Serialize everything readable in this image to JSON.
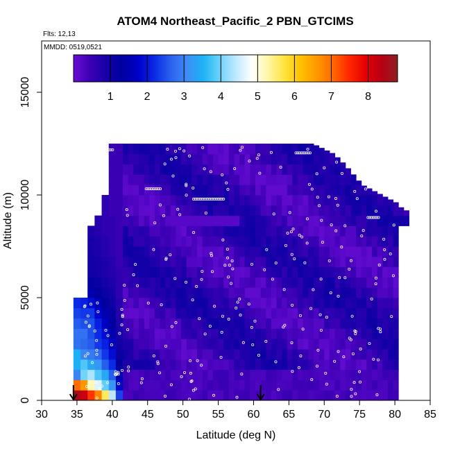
{
  "chart_data": {
    "type": "heatmap",
    "title": "ATOM4 Northeast_Pacific_2 PBN_GTCIMS",
    "flights_note": "Flts: 12,13",
    "dates_note": "MMDD: 0519,0521",
    "xlabel": "Latitude (deg N)",
    "ylabel": "Altitude (m)",
    "xlim": [
      30,
      85
    ],
    "ylim": [
      0,
      17500
    ],
    "x_ticks": [
      "30",
      "35",
      "40",
      "45",
      "50",
      "55",
      "60",
      "65",
      "70",
      "75",
      "80",
      "85"
    ],
    "y_ticks": [
      "0",
      "5000",
      "10000",
      "15000"
    ],
    "colorbar": {
      "range": [
        0,
        8.8
      ],
      "tick_labels": [
        "1",
        "2",
        "3",
        "4",
        "5",
        "6",
        "7",
        "8"
      ],
      "colors": [
        "#6a0dd6",
        "#3d00b4",
        "#1600a8",
        "#00009e",
        "#0000c8",
        "#0a2ae6",
        "#2a62ee",
        "#3f8cf5",
        "#1cb2f5",
        "#6ad2fb",
        "#bfe8ff",
        "#ffffff",
        "#fff7a8",
        "#ffe440",
        "#ffc200",
        "#ff9800",
        "#ff6a00",
        "#ff2800",
        "#e60000",
        "#b80016",
        "#8c2020"
      ]
    },
    "arrows_lat": [
      34.5,
      61
    ],
    "columns": [
      {
        "lat_from": 34.5,
        "lat_to": 35.5,
        "alt_top": 5000,
        "values": [
          8.5,
          7.0,
          3.0,
          3.5,
          3.5,
          2.8,
          2.8,
          2.6,
          2.4,
          2.2
        ]
      },
      {
        "lat_from": 35.5,
        "lat_to": 36.5,
        "alt_top": 5000,
        "values": [
          8.2,
          6.6,
          4.0,
          3.8,
          3.0,
          2.7,
          2.8,
          2.5,
          2.3,
          2.1
        ]
      },
      {
        "lat_from": 36.5,
        "lat_to": 37.5,
        "alt_top": 8800,
        "values": [
          7.4,
          5.2,
          4.3,
          3.4,
          2.9,
          2.6,
          2.5,
          2.5,
          2.3,
          1.9,
          1.5,
          1.2,
          1.0,
          1.0,
          0.9,
          0.9,
          0.8
        ]
      },
      {
        "lat_from": 37.5,
        "lat_to": 38.5,
        "alt_top": 9000,
        "values": [
          6.8,
          4.6,
          3.8,
          3.2,
          2.7,
          2.3,
          2.2,
          2.1,
          1.8,
          1.6,
          1.3,
          1.1,
          0.9,
          0.9,
          0.8,
          0.8,
          0.7,
          0.7
        ]
      },
      {
        "lat_from": 38.5,
        "lat_to": 39.5,
        "alt_top": 10000,
        "values": [
          5.6,
          3.9,
          3.4,
          2.6,
          2.3,
          2.1,
          1.9,
          1.7,
          1.5,
          1.3,
          1.1,
          0.9,
          0.8,
          0.8,
          0.7,
          0.7,
          0.6,
          0.6,
          0.6,
          0.6
        ]
      },
      {
        "lat_from": 39.5,
        "lat_to": 40.5,
        "alt_top": 12500,
        "values": [
          4.4,
          3.2,
          2.6,
          2.2,
          1.9,
          1.7,
          1.5,
          1.3,
          1.2,
          1.0,
          0.9,
          0.8,
          0.7,
          0.7,
          0.6,
          0.6,
          0.6,
          0.6,
          0.5,
          0.5,
          0.5,
          0.5,
          0.5,
          0.5,
          0.5
        ]
      },
      {
        "lat_from": 40.5,
        "lat_to": 41.5,
        "alt_top": 12500,
        "values": [
          2.4,
          1.8,
          1.5,
          1.3,
          1.1,
          1.0,
          0.9,
          0.8,
          0.7,
          0.7,
          0.6,
          0.6,
          0.6,
          0.5,
          0.5,
          0.5,
          0.5,
          0.5,
          0.5,
          0.5,
          0.5,
          0.5,
          0.5,
          0.5,
          0.5
        ]
      }
    ],
    "field_edge": {
      "lat": [
        41.5,
        68,
        71,
        72.5,
        75,
        80,
        81,
        82
      ],
      "alt_top": [
        12500,
        12500,
        12000,
        11500,
        10500,
        9600,
        9200,
        9400
      ],
      "alt_bottom_lat_end": 80
    },
    "grid": false,
    "legend_position": "top"
  }
}
